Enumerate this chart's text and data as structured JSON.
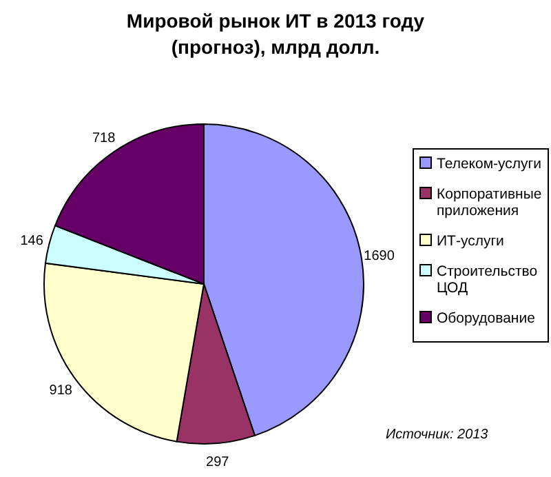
{
  "chart_data": {
    "type": "pie",
    "title": "Мировой рынок ИТ в 2013 году (прогноз), млрд долл.",
    "categories": [
      "Телеком-услуги",
      "Корпоративные приложения",
      "ИТ-услуги",
      "Строительство ЦОД",
      "Оборудование"
    ],
    "values": [
      1690,
      297,
      918,
      146,
      718
    ],
    "colors": [
      "#9999ff",
      "#993366",
      "#ffffcc",
      "#ccffff",
      "#660066"
    ],
    "data_labels": true,
    "legend": "right",
    "annotations": [
      "Источник: 2013"
    ]
  }
}
